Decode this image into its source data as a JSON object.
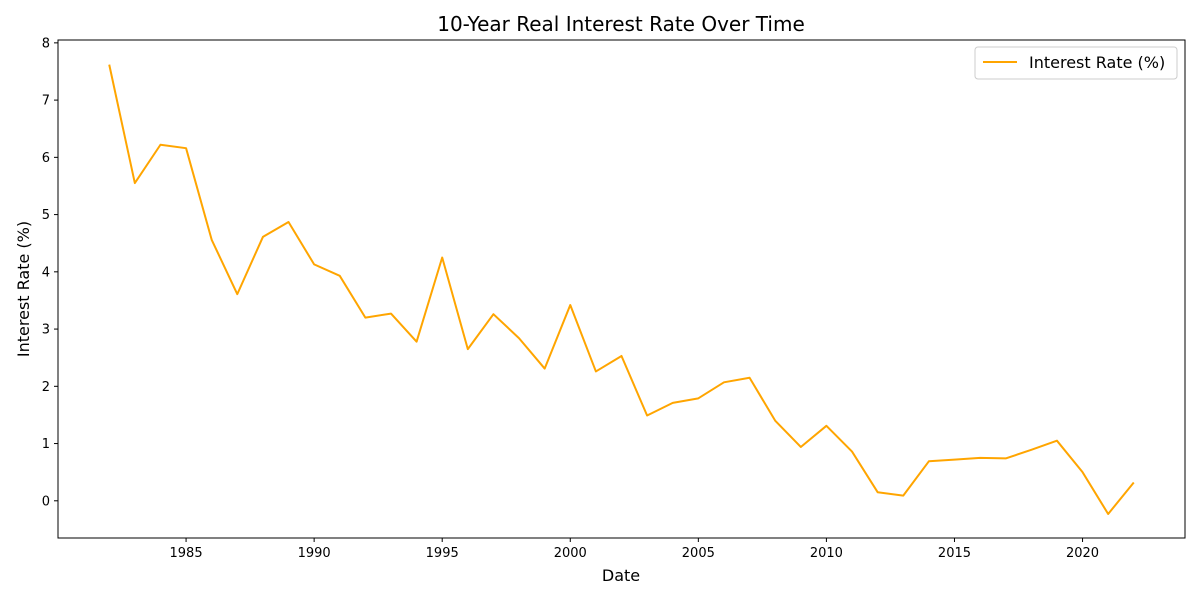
{
  "chart_data": {
    "type": "line",
    "title": "10-Year Real Interest Rate Over Time",
    "xlabel": "Date",
    "ylabel": "Interest Rate (%)",
    "xlim": [
      1980,
      2024
    ],
    "ylim": [
      -0.65,
      8.05
    ],
    "xticks": [
      1985,
      1990,
      1995,
      2000,
      2005,
      2010,
      2015,
      2020
    ],
    "yticks": [
      0,
      1,
      2,
      3,
      4,
      5,
      6,
      7,
      8
    ],
    "grid": false,
    "legend_position": "top-right",
    "series": [
      {
        "name": "Interest Rate (%)",
        "color": "#FFA500",
        "x": [
          1982,
          1983,
          1984,
          1985,
          1986,
          1987,
          1988,
          1989,
          1990,
          1991,
          1992,
          1993,
          1994,
          1995,
          1996,
          1997,
          1998,
          1999,
          2000,
          2001,
          2002,
          2003,
          2004,
          2005,
          2006,
          2007,
          2008,
          2009,
          2010,
          2011,
          2012,
          2013,
          2014,
          2015,
          2016,
          2017,
          2018,
          2019,
          2020,
          2021,
          2022
        ],
        "values": [
          7.62,
          5.55,
          6.22,
          6.16,
          4.56,
          3.61,
          4.61,
          4.87,
          4.13,
          3.93,
          3.2,
          3.27,
          2.78,
          4.25,
          2.65,
          3.26,
          2.84,
          2.31,
          3.42,
          2.26,
          2.53,
          1.49,
          1.71,
          1.79,
          2.07,
          2.15,
          1.4,
          0.94,
          1.31,
          0.86,
          0.15,
          0.09,
          0.69,
          0.72,
          0.75,
          0.74,
          0.89,
          1.05,
          0.5,
          -0.23,
          0.32
        ]
      }
    ]
  }
}
